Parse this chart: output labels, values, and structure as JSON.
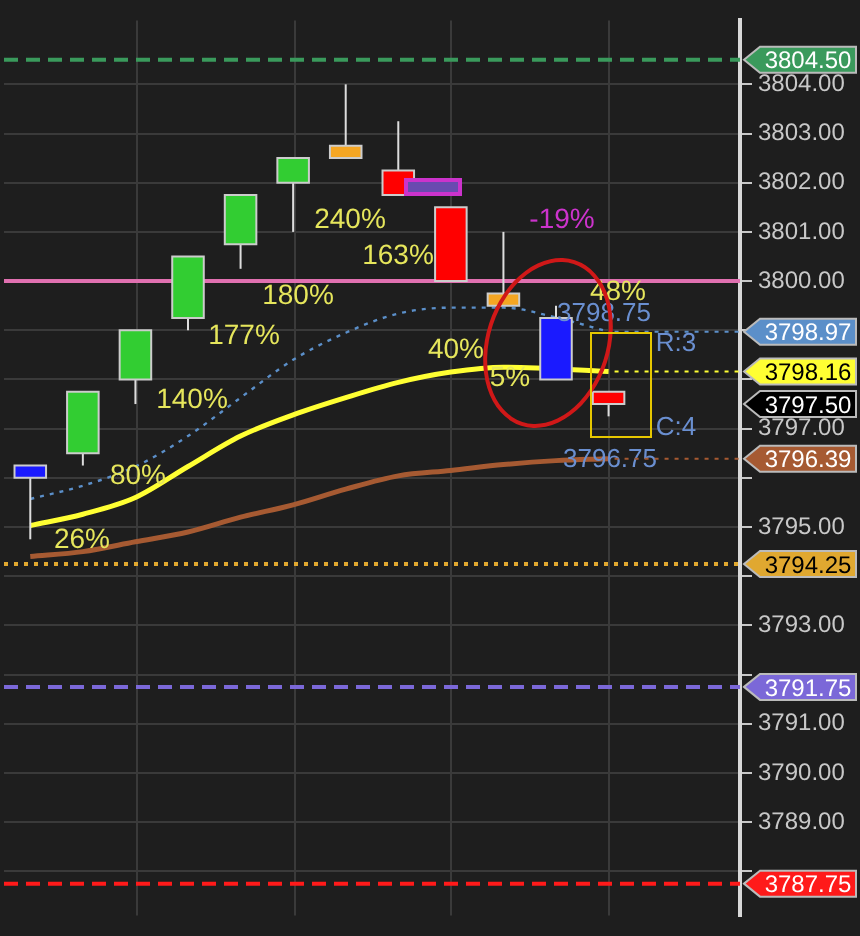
{
  "chart_data": {
    "type": "candlestick",
    "categories": [
      null,
      null,
      null,
      null,
      null,
      null,
      null,
      null,
      null,
      null,
      null,
      null,
      null,
      null
    ],
    "ohlc": [
      [
        3796.25,
        3796.25,
        3794.75,
        3796.0
      ],
      [
        3796.5,
        3797.75,
        3796.25,
        3797.75
      ],
      [
        3798.0,
        3799.0,
        3797.5,
        3799.0
      ],
      [
        3799.25,
        3800.5,
        3799.0,
        3800.5
      ],
      [
        3800.75,
        3801.75,
        3800.25,
        3801.75
      ],
      [
        3802.0,
        3802.5,
        3801.0,
        3802.5
      ],
      [
        3802.75,
        3804.0,
        3802.5,
        3802.5
      ],
      [
        3802.25,
        3803.25,
        3801.75,
        3801.75
      ],
      [
        3801.5,
        3801.5,
        3800.0,
        3800.0
      ],
      [
        3799.75,
        3801.0,
        3799.5,
        3799.5
      ],
      [
        3799.25,
        3799.5,
        3798.0,
        3798.0
      ],
      [
        3797.75,
        3797.75,
        3797.25,
        3797.5
      ],
      null,
      null
    ],
    "colors": [
      "#1a1aff",
      "#32cd32",
      "#32cd32",
      "#32cd32",
      "#32cd32",
      "#32cd32",
      "#f5a623",
      "#ff0000",
      "#ff0000",
      "#f5a623",
      "#1a1aff",
      "#ff0000",
      null,
      null
    ],
    "value_labels": [
      null,
      null,
      null,
      null,
      null,
      null,
      null,
      null,
      null,
      null,
      null,
      "3797.50",
      null,
      null
    ],
    "series": [
      {
        "type": "line",
        "color": "#5b8fc9",
        "line_style": "dotted",
        "values": [
          3795.57,
          3795.84,
          3796.23,
          3796.85,
          3797.63,
          3798.4,
          3798.95,
          3799.34,
          3799.46,
          3799.46,
          3799.26,
          3798.97,
          null,
          null
        ],
        "value_labels": [
          null,
          null,
          null,
          null,
          null,
          null,
          null,
          null,
          null,
          null,
          null,
          "3798.97",
          null,
          null
        ]
      },
      {
        "type": "line",
        "color": "#ffff33",
        "values": [
          3795.03,
          3795.26,
          3795.6,
          3796.23,
          3796.85,
          3797.28,
          3797.63,
          3797.94,
          3798.15,
          3798.25,
          null,
          3798.16,
          null,
          null
        ],
        "value_labels": [
          null,
          null,
          null,
          null,
          null,
          null,
          null,
          null,
          null,
          null,
          null,
          "3798.16",
          null,
          null
        ]
      },
      {
        "type": "line",
        "color": "#a65a32",
        "values": [
          3794.4,
          3794.5,
          3794.7,
          3794.9,
          3795.2,
          3795.45,
          3795.77,
          3796.04,
          3796.15,
          3796.27,
          3796.35,
          3796.39,
          null,
          null
        ],
        "value_labels": [
          null,
          null,
          null,
          null,
          null,
          null,
          null,
          null,
          null,
          null,
          null,
          "3796.39",
          null,
          null
        ]
      }
    ],
    "ref_lines": [
      {
        "axis": "y",
        "value": 3804.5,
        "label": "3804.50",
        "color": "#3a9a5c",
        "line_style": "dashed"
      },
      {
        "axis": "y",
        "value": 3800.0,
        "color": "#e070b0",
        "line_style": "solid"
      },
      {
        "axis": "y",
        "value": 3794.25,
        "label": "3794.25",
        "color": "#e0a830",
        "line_style": "dotted"
      },
      {
        "axis": "y",
        "value": 3791.75,
        "label": "3791.75",
        "color": "#7b68d8",
        "line_style": "dashed"
      },
      {
        "axis": "y",
        "value": 3787.75,
        "label": "3787.75",
        "color": "#ff1a1a",
        "line_style": "dashed"
      }
    ],
    "annotations": [
      "26%",
      "80%",
      "140%",
      "177%",
      "180%",
      "240%",
      "163%",
      "40%",
      "5%",
      "-19%",
      "48%",
      "3798.75",
      "R:3",
      "C:4",
      "3796.75"
    ],
    "ylim": [
      3787.1,
      3805.3
    ],
    "yticks": [
      {
        "value": 3788,
        "label": null
      },
      {
        "value": 3789,
        "label": "3789.00"
      },
      {
        "value": 3790,
        "label": "3790.00"
      },
      {
        "value": 3791,
        "label": "3791.00"
      },
      {
        "value": 3792,
        "label": null
      },
      {
        "value": 3793,
        "label": "3793.00"
      },
      {
        "value": 3794,
        "label": null
      },
      {
        "value": 3795,
        "label": "3795.00"
      },
      {
        "value": 3796,
        "label": null
      },
      {
        "value": 3797,
        "label": "3797.00"
      },
      {
        "value": 3798,
        "label": null
      },
      {
        "value": 3799,
        "label": null
      },
      {
        "value": 3800,
        "label": "3800.00"
      },
      {
        "value": 3801,
        "label": "3801.00"
      },
      {
        "value": 3802,
        "label": "3802.00"
      },
      {
        "value": 3803,
        "label": "3803.00"
      },
      {
        "value": 3804,
        "label": "3804.00"
      }
    ],
    "grid": true,
    "legend": false,
    "marker": "none"
  }
}
